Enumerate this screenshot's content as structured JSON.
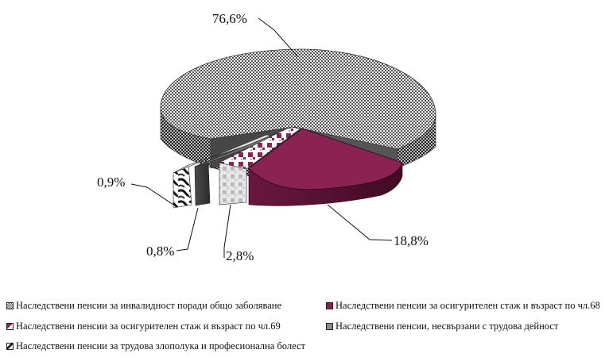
{
  "chart_data": {
    "type": "pie",
    "style": "3d-exploded",
    "title": "",
    "slices": [
      {
        "label": "Наследствени пенсии за инвалидност поради общо заболяване",
        "value": 76.6,
        "value_label": "76,6%",
        "fill": "checker"
      },
      {
        "label": "Наследствени пенсии за осигурителен стаж и възраст по чл.68",
        "value": 18.8,
        "value_label": "18,8%",
        "fill": "#8a2252"
      },
      {
        "label": "Наследствени пенсии за осигурителен стаж и възраст по чл.69",
        "value": 2.8,
        "value_label": "2,8%",
        "fill": "plaid"
      },
      {
        "label": "Наследствени пенсии, несвързани с трудова дейност",
        "value": 0.8,
        "value_label": "0,8%",
        "fill": "#777777"
      },
      {
        "label": "Наследствени пенсии за трудова злополука и професионална болест",
        "value": 0.9,
        "value_label": "0,9%",
        "fill": "marble"
      }
    ],
    "legend_position": "bottom"
  },
  "colors": {
    "magenta": "#8a2252",
    "magenta_dark": "#4e0f2c",
    "gray": "#6f6f6f",
    "gray_dark": "#3c3c3c"
  }
}
